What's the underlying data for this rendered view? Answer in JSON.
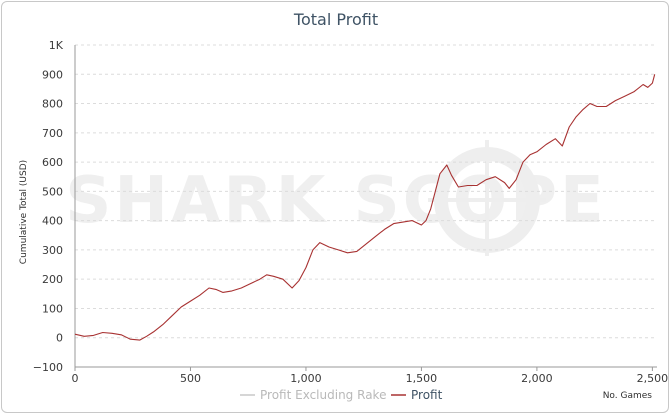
{
  "chart_data": {
    "type": "line",
    "title": "Total Profit",
    "xlabel": "No. Games",
    "ylabel": "Cumulative Total (USD)",
    "xlim": [
      0,
      2520
    ],
    "ylim": [
      -100,
      1000
    ],
    "x_ticks": [
      0,
      500,
      1000,
      1500,
      2000,
      2500
    ],
    "x_tick_labels": [
      "0",
      "500",
      "1,000",
      "1,500",
      "2,000",
      "2,500"
    ],
    "y_ticks": [
      -100,
      0,
      100,
      200,
      300,
      400,
      500,
      600,
      700,
      800,
      900,
      1000
    ],
    "y_tick_labels": [
      "−100",
      "0",
      "100",
      "200",
      "300",
      "400",
      "500",
      "600",
      "700",
      "800",
      "900",
      "1K"
    ],
    "grid": "horizontal dashed",
    "legend_position": "bottom-center",
    "watermark": "SHARK SCOPE",
    "series": [
      {
        "name": "Profit Excluding Rake",
        "color": "#cccccc",
        "visible": false,
        "points": []
      },
      {
        "name": "Profit",
        "color": "#a83232",
        "points": [
          [
            0,
            12
          ],
          [
            40,
            5
          ],
          [
            80,
            8
          ],
          [
            120,
            18
          ],
          [
            160,
            15
          ],
          [
            200,
            10
          ],
          [
            240,
            -5
          ],
          [
            280,
            -8
          ],
          [
            310,
            5
          ],
          [
            340,
            20
          ],
          [
            380,
            45
          ],
          [
            420,
            75
          ],
          [
            460,
            105
          ],
          [
            500,
            125
          ],
          [
            540,
            145
          ],
          [
            580,
            170
          ],
          [
            610,
            165
          ],
          [
            640,
            155
          ],
          [
            680,
            160
          ],
          [
            720,
            170
          ],
          [
            760,
            185
          ],
          [
            800,
            200
          ],
          [
            830,
            215
          ],
          [
            860,
            210
          ],
          [
            900,
            200
          ],
          [
            940,
            170
          ],
          [
            970,
            195
          ],
          [
            1000,
            240
          ],
          [
            1030,
            300
          ],
          [
            1060,
            325
          ],
          [
            1100,
            310
          ],
          [
            1140,
            300
          ],
          [
            1180,
            290
          ],
          [
            1220,
            295
          ],
          [
            1260,
            320
          ],
          [
            1300,
            345
          ],
          [
            1340,
            370
          ],
          [
            1380,
            390
          ],
          [
            1420,
            395
          ],
          [
            1460,
            400
          ],
          [
            1500,
            385
          ],
          [
            1520,
            400
          ],
          [
            1540,
            440
          ],
          [
            1560,
            500
          ],
          [
            1580,
            560
          ],
          [
            1610,
            590
          ],
          [
            1630,
            555
          ],
          [
            1660,
            515
          ],
          [
            1700,
            520
          ],
          [
            1740,
            520
          ],
          [
            1780,
            540
          ],
          [
            1820,
            550
          ],
          [
            1860,
            530
          ],
          [
            1880,
            510
          ],
          [
            1910,
            540
          ],
          [
            1940,
            600
          ],
          [
            1970,
            625
          ],
          [
            2000,
            635
          ],
          [
            2040,
            660
          ],
          [
            2080,
            680
          ],
          [
            2110,
            655
          ],
          [
            2140,
            720
          ],
          [
            2170,
            755
          ],
          [
            2200,
            780
          ],
          [
            2230,
            800
          ],
          [
            2260,
            790
          ],
          [
            2300,
            790
          ],
          [
            2340,
            810
          ],
          [
            2380,
            825
          ],
          [
            2420,
            840
          ],
          [
            2460,
            865
          ],
          [
            2480,
            855
          ],
          [
            2500,
            870
          ],
          [
            2510,
            900
          ]
        ]
      }
    ]
  }
}
